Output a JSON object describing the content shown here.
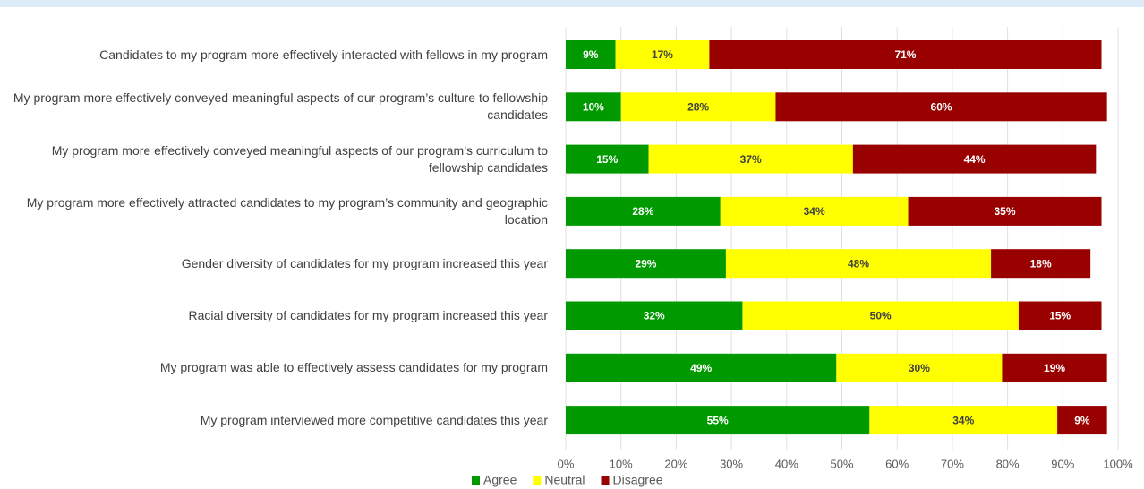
{
  "chart_data": {
    "type": "stacked-barh",
    "categories": [
      "Candidates to my program more effectively interacted with fellows in my program",
      "My program more effectively conveyed meaningful aspects of our program’s culture to fellowship candidates",
      "My program more effectively conveyed meaningful aspects of our program’s curriculum to fellowship candidates",
      "My program more effectively attracted candidates to my program’s community and geographic location",
      "Gender diversity of candidates for my program increased this year",
      "Racial diversity of candidates for my program increased this year",
      "My program was able to effectively assess candidates for my program",
      "My program interviewed more competitive candidates this year"
    ],
    "series": [
      {
        "name": "Agree",
        "color": "#009a00",
        "values": [
          9,
          10,
          15,
          28,
          29,
          32,
          49,
          55
        ],
        "value_labels": [
          "9%",
          "10%",
          "15%",
          "28%",
          "29%",
          "32%",
          "49%",
          "55%"
        ]
      },
      {
        "name": "Neutral",
        "color": "#ffff00",
        "values": [
          17,
          28,
          37,
          34,
          48,
          50,
          30,
          34
        ],
        "value_labels": [
          "17%",
          "28%",
          "37%",
          "34%",
          "48%",
          "50%",
          "30%",
          "34%"
        ]
      },
      {
        "name": "Disagree",
        "color": "#990000",
        "values": [
          71,
          60,
          44,
          35,
          18,
          15,
          19,
          9
        ],
        "value_labels": [
          "71%",
          "60%",
          "44%",
          "35%",
          "18%",
          "15%",
          "19%",
          "9%"
        ]
      }
    ],
    "xlim": [
      0,
      100
    ],
    "xticks": [
      {
        "value": 0,
        "label": "0%"
      },
      {
        "value": 10,
        "label": "10%"
      },
      {
        "value": 20,
        "label": "20%"
      },
      {
        "value": 30,
        "label": "30%"
      },
      {
        "value": 40,
        "label": "40%"
      },
      {
        "value": 50,
        "label": "50%"
      },
      {
        "value": 60,
        "label": "60%"
      },
      {
        "value": 70,
        "label": "70%"
      },
      {
        "value": 80,
        "label": "80%"
      },
      {
        "value": 90,
        "label": "90%"
      },
      {
        "value": 100,
        "label": "100%"
      }
    ],
    "grid": true,
    "legend": "bottom"
  }
}
